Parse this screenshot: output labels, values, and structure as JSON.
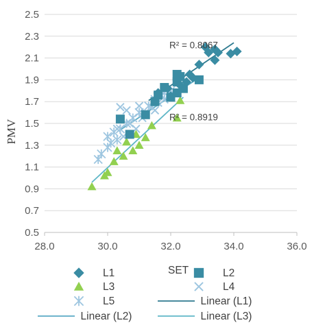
{
  "chart_data": {
    "type": "scatter",
    "title": "",
    "xlabel": "SET",
    "ylabel": "PMV",
    "xlim": [
      28.0,
      36.0
    ],
    "ylim": [
      0.5,
      2.5
    ],
    "x_ticks": [
      "28.0",
      "30.0",
      "32.0",
      "34.0",
      "36.0"
    ],
    "y_ticks": [
      "0.5",
      "0.7",
      "0.9",
      "1.1",
      "1.3",
      "1.5",
      "1.7",
      "1.9",
      "2.1",
      "2.3",
      "2.5"
    ],
    "grid": "horizontal",
    "legend_placement": "bottom",
    "series": [
      {
        "name": "L1",
        "marker": "diamond",
        "color": "#3a8ca3",
        "points": [
          [
            33.1,
            2.2
          ],
          [
            33.2,
            2.15
          ],
          [
            33.4,
            2.18
          ],
          [
            33.5,
            2.15
          ],
          [
            33.9,
            2.14
          ],
          [
            34.1,
            2.16
          ],
          [
            33.4,
            2.08
          ],
          [
            32.9,
            2.04
          ],
          [
            32.6,
            1.95
          ],
          [
            32.7,
            1.92
          ],
          [
            32.2,
            1.9
          ],
          [
            32.3,
            1.85
          ],
          [
            31.9,
            1.82
          ],
          [
            32.5,
            1.88
          ],
          [
            31.6,
            1.78
          ],
          [
            32.0,
            1.75
          ]
        ]
      },
      {
        "name": "L2",
        "marker": "square",
        "color": "#3a8ca3",
        "points": [
          [
            32.2,
            1.95
          ],
          [
            32.3,
            1.93
          ],
          [
            32.9,
            1.9
          ],
          [
            32.2,
            1.88
          ],
          [
            31.8,
            1.83
          ],
          [
            32.4,
            1.82
          ],
          [
            32.2,
            1.78
          ],
          [
            31.6,
            1.76
          ],
          [
            32.0,
            1.74
          ],
          [
            31.5,
            1.7
          ],
          [
            31.2,
            1.58
          ],
          [
            30.4,
            1.54
          ],
          [
            30.7,
            1.4
          ]
        ]
      },
      {
        "name": "L3",
        "marker": "triangle",
        "color": "#92d050",
        "points": [
          [
            32.3,
            1.71
          ],
          [
            32.2,
            1.55
          ],
          [
            31.4,
            1.48
          ],
          [
            31.2,
            1.37
          ],
          [
            31.0,
            1.3
          ],
          [
            30.8,
            1.25
          ],
          [
            30.5,
            1.2
          ],
          [
            30.6,
            1.33
          ],
          [
            30.2,
            1.15
          ],
          [
            30.0,
            1.05
          ],
          [
            29.9,
            1.02
          ],
          [
            29.5,
            0.92
          ],
          [
            30.3,
            1.25
          ],
          [
            30.9,
            1.4
          ]
        ]
      },
      {
        "name": "L4",
        "marker": "x",
        "color": "#9ec6e0",
        "points": [
          [
            30.4,
            1.65
          ],
          [
            30.6,
            1.62
          ],
          [
            31.0,
            1.66
          ],
          [
            31.2,
            1.6
          ],
          [
            31.4,
            1.65
          ],
          [
            31.6,
            1.69
          ],
          [
            31.7,
            1.76
          ],
          [
            31.1,
            1.55
          ],
          [
            30.7,
            1.5
          ],
          [
            30.9,
            1.45
          ],
          [
            30.3,
            1.45
          ],
          [
            30.5,
            1.38
          ],
          [
            31.8,
            1.72
          ],
          [
            31.5,
            1.62
          ]
        ]
      },
      {
        "name": "L5",
        "marker": "asterisk",
        "color": "#9ec6e0",
        "points": [
          [
            29.7,
            1.17
          ],
          [
            29.8,
            1.22
          ],
          [
            30.0,
            1.28
          ],
          [
            30.1,
            1.32
          ],
          [
            30.0,
            1.38
          ],
          [
            30.2,
            1.42
          ],
          [
            30.4,
            1.45
          ],
          [
            30.6,
            1.5
          ],
          [
            30.8,
            1.55
          ],
          [
            31.0,
            1.6
          ],
          [
            31.3,
            1.66
          ],
          [
            31.5,
            1.72
          ],
          [
            31.8,
            1.78
          ],
          [
            32.0,
            1.8
          ],
          [
            30.3,
            1.35
          ]
        ]
      },
      {
        "name": "Linear (L1)",
        "type": "line",
        "color": "#2e7a8f",
        "x": [
          31.3,
          34.0
        ],
        "y": [
          1.71,
          2.24
        ]
      },
      {
        "name": "Linear (L2)",
        "type": "line",
        "color": "#5aaac5",
        "x": [
          30.4,
          32.9
        ],
        "y": [
          1.44,
          1.92
        ]
      },
      {
        "name": "Linear (L3)",
        "type": "line",
        "color": "#5fb7c7",
        "x": [
          29.5,
          32.4
        ],
        "y": [
          0.96,
          1.74
        ]
      }
    ],
    "annotations": [
      {
        "text": "R² = 0.8067",
        "x": 32.0,
        "y": 2.22
      },
      {
        "text": "R² = 0.8919",
        "x": 32.0,
        "y": 1.56
      }
    ]
  }
}
